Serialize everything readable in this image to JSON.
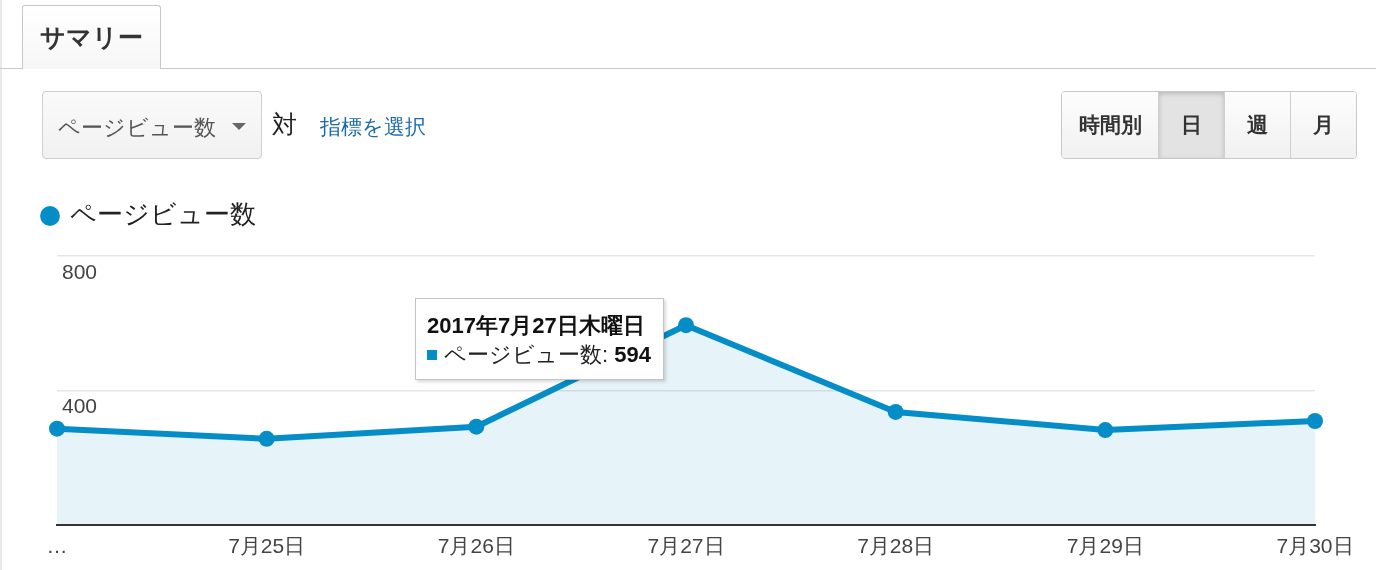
{
  "chart_data": {
    "type": "area",
    "title": "サマリー",
    "categories": [
      "…",
      "7月25日",
      "7月26日",
      "7月27日",
      "7月28日",
      "7月29日",
      "7月30日"
    ],
    "series": [
      {
        "name": "ページビュー数",
        "color": "#058dc7",
        "values": [
          286,
          256,
          292,
          594,
          336,
          282,
          309
        ]
      }
    ],
    "ylim": [
      0,
      800
    ],
    "yticks": [
      400,
      800
    ],
    "grid": "y",
    "legend": "top left",
    "marker": "circle",
    "annotations": [
      "ページビュー数",
      "対",
      "指標を選択",
      "時間別",
      "日",
      "週",
      "月",
      {
        "text": "2017年7月27日木曜日",
        "x": "7月27日",
        "y": 594
      },
      {
        "text": "ページビュー数: 594",
        "x": "7月27日",
        "y": 594
      }
    ]
  }
}
